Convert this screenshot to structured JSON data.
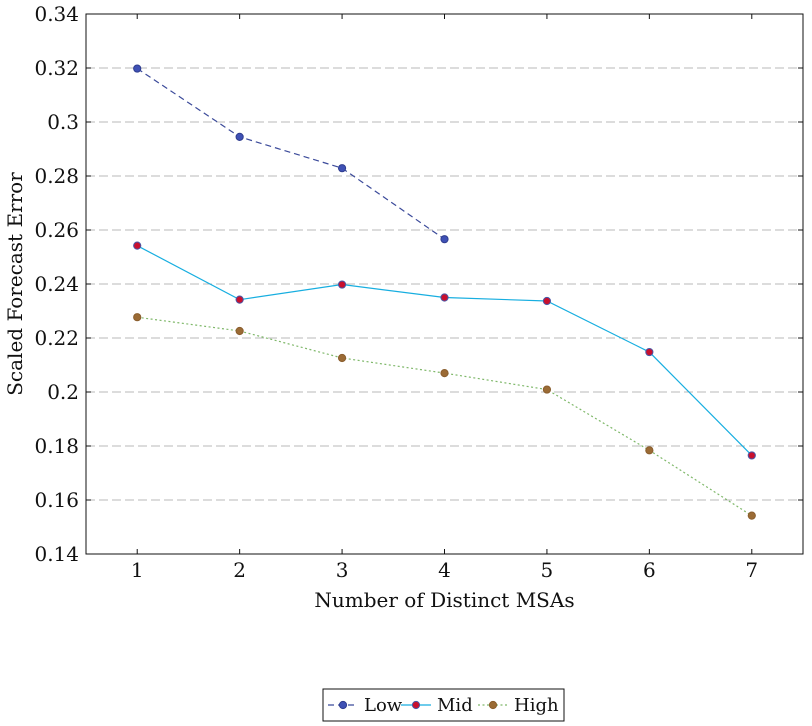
{
  "chart_data": {
    "type": "line",
    "title": "",
    "xlabel": "Number of Distinct MSAs",
    "ylabel": "Scaled Forecast Error",
    "xlim": [
      0.5,
      7.5
    ],
    "ylim": [
      0.14,
      0.34
    ],
    "x_ticks": [
      1,
      2,
      3,
      4,
      5,
      6,
      7
    ],
    "y_ticks": [
      0.14,
      0.16,
      0.18,
      0.2,
      0.22,
      0.24,
      0.26,
      0.28,
      0.3,
      0.32,
      0.34
    ],
    "x_tick_labels": [
      "1",
      "2",
      "3",
      "4",
      "5",
      "6",
      "7"
    ],
    "y_tick_labels": [
      "0.14",
      "0.16",
      "0.18",
      "0.2",
      "0.22",
      "0.24",
      "0.26",
      "0.28",
      "0.3",
      "0.32",
      "0.34"
    ],
    "grid": "horizontal dashed",
    "legend_position": "bottom-center",
    "series": [
      {
        "name": "Low",
        "x": [
          1,
          2,
          3,
          4
        ],
        "values": [
          0.3198,
          0.2945,
          0.2829,
          0.2566
        ],
        "line_color": "#3b4a9a",
        "line_style": "dashed",
        "marker_color": "#3f51b5",
        "marker_edge": "#2f3d8f"
      },
      {
        "name": "Mid",
        "x": [
          1,
          2,
          3,
          4,
          5,
          6,
          7
        ],
        "values": [
          0.2542,
          0.2342,
          0.2398,
          0.235,
          0.2337,
          0.2148,
          0.1765
        ],
        "line_color": "#17aee0",
        "line_style": "solid",
        "marker_color": "#c8102e",
        "marker_edge": "#4a57a6"
      },
      {
        "name": "High",
        "x": [
          1,
          2,
          3,
          4,
          5,
          6,
          7
        ],
        "values": [
          0.2277,
          0.2226,
          0.2126,
          0.207,
          0.2009,
          0.1784,
          0.1542
        ],
        "line_color": "#7fb86a",
        "line_style": "dotted",
        "marker_color": "#9b6b35",
        "marker_edge": "#8a5e2e"
      }
    ]
  }
}
